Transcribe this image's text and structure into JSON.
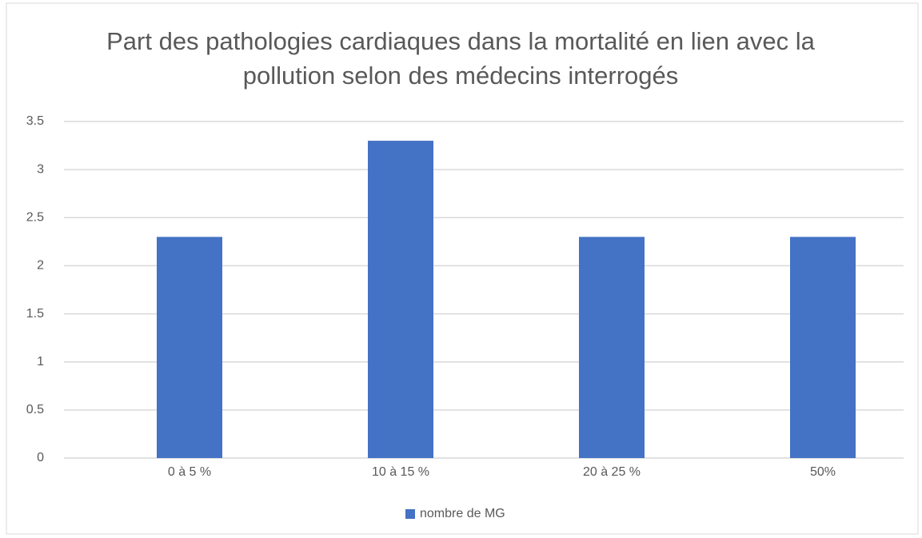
{
  "chart_data": {
    "type": "bar",
    "title": "Part des pathologies cardiaques dans la mortalité en lien avec la pollution selon des médecins interrogés",
    "categories": [
      "0 à 5 %",
      "10 à 15 %",
      "20 à 25 %",
      "50%"
    ],
    "series": [
      {
        "name": "nombre de MG",
        "color": "#4472c4",
        "values": [
          2.3,
          3.3,
          2.3,
          2.3
        ]
      }
    ],
    "ylim": [
      0,
      3.5
    ],
    "yticks": [
      0,
      0.5,
      1,
      1.5,
      2,
      2.5,
      3,
      3.5
    ],
    "grid": true,
    "legend": "bottom"
  }
}
